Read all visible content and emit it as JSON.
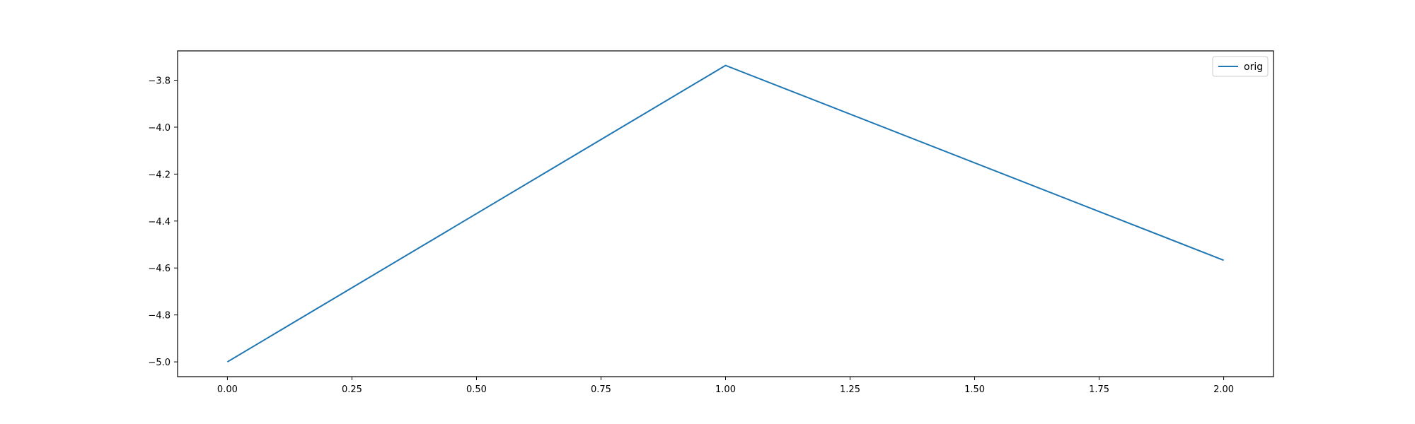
{
  "chart_data": {
    "type": "line",
    "title": "",
    "xlabel": "",
    "ylabel": "",
    "xlim": [
      -0.1,
      2.1
    ],
    "ylim": [
      -5.063,
      -3.675
    ],
    "x_ticks": [
      0.0,
      0.25,
      0.5,
      0.75,
      1.0,
      1.25,
      1.5,
      1.75,
      2.0
    ],
    "x_tick_labels": [
      "0.00",
      "0.25",
      "0.50",
      "0.75",
      "1.00",
      "1.25",
      "1.50",
      "1.75",
      "2.00"
    ],
    "y_ticks": [
      -5.0,
      -4.8,
      -4.6,
      -4.4,
      -4.2,
      -4.0,
      -3.8
    ],
    "y_tick_labels": [
      "−5.0",
      "−4.8",
      "−4.6",
      "−4.4",
      "−4.2",
      "−4.0",
      "−3.8"
    ],
    "grid": false,
    "legend_position": "top-right",
    "series": [
      {
        "name": "orig",
        "color": "#1f77b4",
        "x": [
          0,
          1,
          2
        ],
        "y": [
          -5.0,
          -3.737,
          -4.567
        ]
      }
    ]
  }
}
